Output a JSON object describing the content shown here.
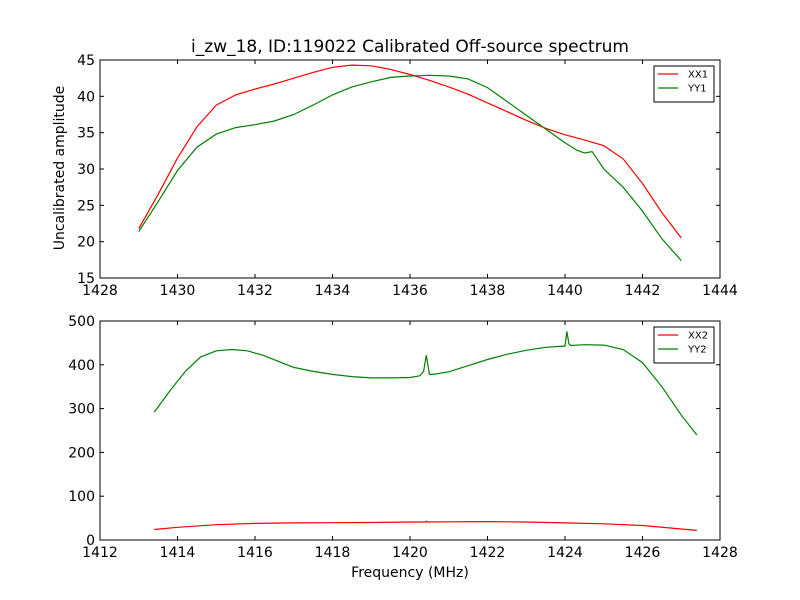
{
  "title": "i_zw_18, ID:119022 Calibrated Off-source spectrum",
  "colors": {
    "XX": "#ff0000",
    "YY": "#008000"
  },
  "chart_data": [
    {
      "type": "line",
      "ylabel": "Uncalibrated amplitude",
      "xlabel": "",
      "xlim": [
        1428,
        1444
      ],
      "ylim": [
        15,
        45
      ],
      "xticks": [
        1428,
        1430,
        1432,
        1434,
        1436,
        1438,
        1440,
        1442,
        1444
      ],
      "yticks": [
        15,
        20,
        25,
        30,
        35,
        40,
        45
      ],
      "legend": "top-right",
      "grid": false,
      "series": [
        {
          "name": "XX1",
          "color": "#ff0000",
          "x": [
            1429.0,
            1429.5,
            1430.0,
            1430.5,
            1431.0,
            1431.5,
            1432.0,
            1432.5,
            1433.0,
            1433.5,
            1434.0,
            1434.5,
            1435.0,
            1435.5,
            1436.0,
            1436.5,
            1437.0,
            1437.5,
            1438.0,
            1438.5,
            1439.0,
            1439.5,
            1440.0,
            1440.5,
            1441.0,
            1441.5,
            1442.0,
            1442.5,
            1443.0
          ],
          "y": [
            21.8,
            26.5,
            31.5,
            35.8,
            38.8,
            40.2,
            41.0,
            41.7,
            42.5,
            43.3,
            44.0,
            44.3,
            44.2,
            43.7,
            43.0,
            42.2,
            41.3,
            40.3,
            39.1,
            37.9,
            36.7,
            35.6,
            34.7,
            34.0,
            33.2,
            31.4,
            28.0,
            24.0,
            20.5
          ]
        },
        {
          "name": "YY1",
          "color": "#008000",
          "x": [
            1429.0,
            1429.5,
            1430.0,
            1430.5,
            1431.0,
            1431.5,
            1432.0,
            1432.5,
            1433.0,
            1433.5,
            1434.0,
            1434.5,
            1435.0,
            1435.5,
            1436.0,
            1436.5,
            1437.0,
            1437.5,
            1438.0,
            1438.5,
            1439.0,
            1439.5,
            1440.0,
            1440.3,
            1440.5,
            1440.7,
            1441.0,
            1441.5,
            1442.0,
            1442.5,
            1443.0
          ],
          "y": [
            21.4,
            25.5,
            29.8,
            33.0,
            34.8,
            35.7,
            36.1,
            36.6,
            37.5,
            38.8,
            40.2,
            41.3,
            42.0,
            42.6,
            42.8,
            42.9,
            42.8,
            42.4,
            41.2,
            39.3,
            37.4,
            35.5,
            33.6,
            32.6,
            32.2,
            32.4,
            30.0,
            27.5,
            24.2,
            20.4,
            17.4
          ]
        }
      ]
    },
    {
      "type": "line",
      "ylabel": "",
      "xlabel": "Frequency (MHz)",
      "xlim": [
        1412,
        1428
      ],
      "ylim": [
        0,
        500
      ],
      "xticks": [
        1412,
        1414,
        1416,
        1418,
        1420,
        1422,
        1424,
        1426,
        1428
      ],
      "yticks": [
        0,
        100,
        200,
        300,
        400,
        500
      ],
      "legend": "top-right",
      "grid": false,
      "series": [
        {
          "name": "XX2",
          "color": "#ff0000",
          "x": [
            1413.4,
            1414.0,
            1415.0,
            1416.0,
            1417.0,
            1418.0,
            1419.0,
            1420.0,
            1420.4,
            1420.42,
            1420.45,
            1421.0,
            1422.0,
            1423.0,
            1424.0,
            1425.0,
            1426.0,
            1427.0,
            1427.4
          ],
          "y": [
            24,
            29,
            35,
            38,
            39,
            39.5,
            40,
            41,
            41,
            43,
            41,
            41.5,
            42,
            41,
            39,
            37,
            33,
            25,
            22
          ]
        },
        {
          "name": "YY2",
          "color": "#008000",
          "x": [
            1413.4,
            1413.8,
            1414.2,
            1414.6,
            1415.0,
            1415.4,
            1415.8,
            1416.2,
            1416.6,
            1417.0,
            1417.5,
            1418.0,
            1418.5,
            1419.0,
            1419.5,
            1420.0,
            1420.25,
            1420.35,
            1420.42,
            1420.5,
            1420.6,
            1421.0,
            1421.5,
            1422.0,
            1422.5,
            1423.0,
            1423.5,
            1424.0,
            1424.05,
            1424.1,
            1424.15,
            1424.5,
            1425.0,
            1425.5,
            1426.0,
            1426.5,
            1427.0,
            1427.4
          ],
          "y": [
            292,
            340,
            385,
            418,
            432,
            435,
            432,
            422,
            408,
            394,
            385,
            378,
            373,
            370,
            370,
            371,
            375,
            385,
            422,
            378,
            378,
            384,
            398,
            412,
            424,
            433,
            440,
            443,
            476,
            448,
            444,
            446,
            445,
            435,
            405,
            350,
            285,
            240
          ]
        }
      ]
    }
  ]
}
